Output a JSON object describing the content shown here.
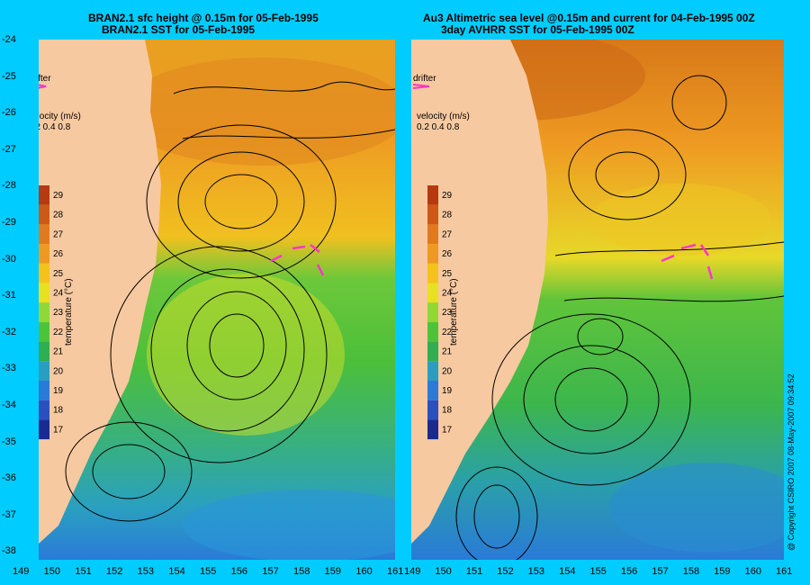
{
  "left_panel": {
    "title_line1": "BRAN2.1 sfc height @ 0.15m for 05-Feb-1995",
    "title_line2": "BRAN2.1 SST for 05-Feb-1995"
  },
  "right_panel": {
    "title_line1": "Au3 Altimetric sea level  @0.15m and current for 04-Feb-1995 00Z",
    "title_line2": "3day AVHRR SST for 05-Feb-1995 00Z"
  },
  "legend": {
    "drifter_label": "drifter",
    "velocity_label": "velocity (m/s)",
    "velocity_scale": "0.2 0.4 0.8",
    "colorbar_label": "temperature (°C)",
    "colorbar_values": [
      "29",
      "28",
      "27",
      "26",
      "25",
      "24",
      "23",
      "22",
      "21",
      "20",
      "19",
      "18",
      "17"
    ],
    "colorbar_colors": [
      "#b53a10",
      "#cc5a16",
      "#e07a20",
      "#ee9a22",
      "#f5c21c",
      "#e8e020",
      "#8fd838",
      "#4cc43a",
      "#2fae52",
      "#2a9ec0",
      "#2a7ad8",
      "#2a50c0",
      "#1a2a90"
    ]
  },
  "axes": {
    "lat_ticks": [
      "-24",
      "-25",
      "-26",
      "-27",
      "-28",
      "-29",
      "-30",
      "-31",
      "-32",
      "-33",
      "-34",
      "-35",
      "-36",
      "-37",
      "-38"
    ],
    "lon_ticks_left": [
      "149",
      "150",
      "151",
      "152",
      "153",
      "154",
      "155",
      "156",
      "157",
      "158",
      "159",
      "160",
      "161"
    ],
    "lon_ticks_right": [
      "149",
      "150",
      "151",
      "152",
      "153",
      "154",
      "155",
      "156",
      "157",
      "158",
      "159",
      "160",
      "161"
    ]
  },
  "copyright": "@ Copyright CSIRO 2007  08-May-2007 09:34:52",
  "colors": {
    "background": "#00ccff",
    "land": "#f7c9a0",
    "drifter_track": "#ff33cc"
  }
}
